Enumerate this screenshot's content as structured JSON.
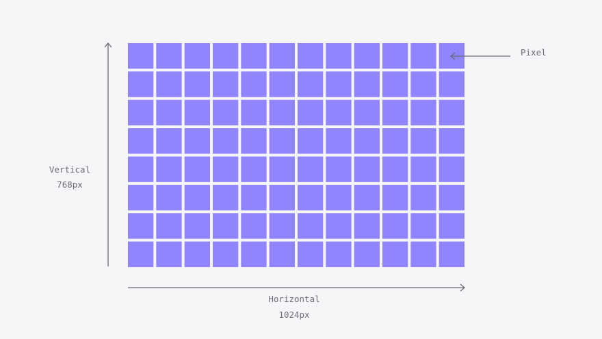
{
  "grid": {
    "columns": 12,
    "rows": 8,
    "cell_color": "#9184ff",
    "background": "#f6f6f8",
    "line_color": "#686a76"
  },
  "labels": {
    "pixel": "Pixel",
    "vertical_title": "Vertical",
    "vertical_value": "768px",
    "horizontal_title": "Horizontal",
    "horizontal_value": "1024px"
  }
}
